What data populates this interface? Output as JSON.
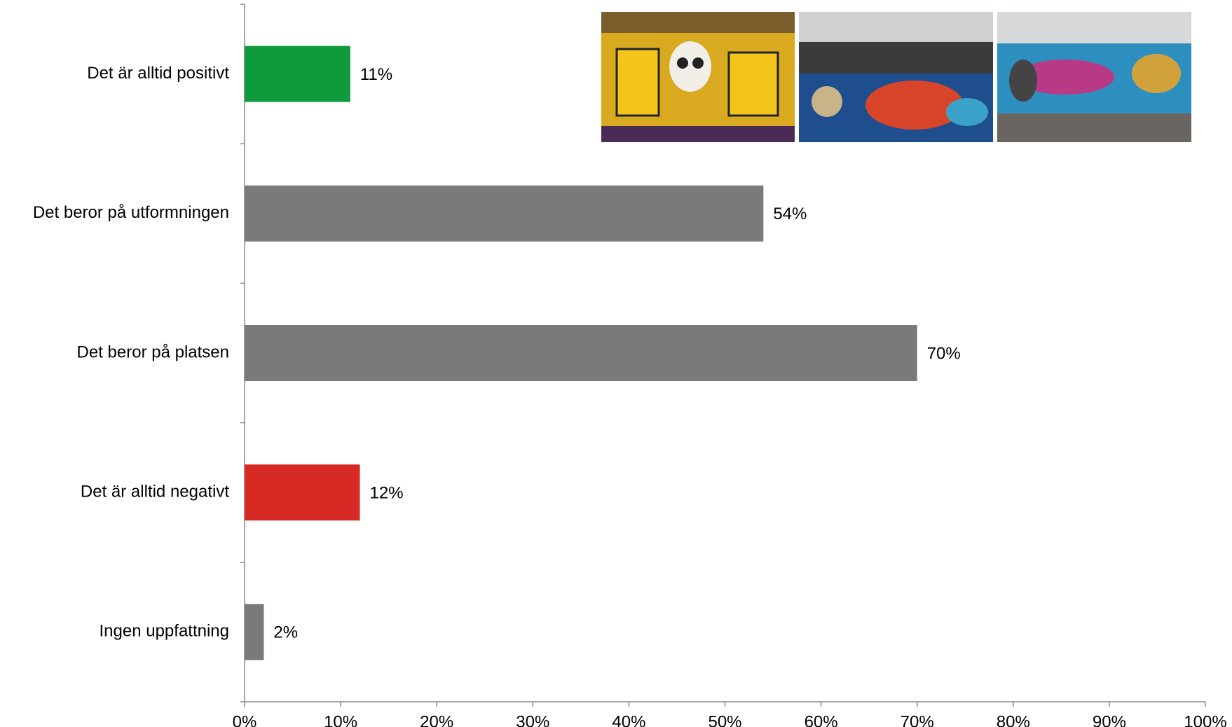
{
  "chart_data": {
    "type": "hbar",
    "categories": [
      "Det är alltid positivt",
      "Det beror på utformningen",
      "Det beror på platsen",
      "Det är alltid negativt",
      "Ingen uppfattning"
    ],
    "values": [
      11,
      54,
      70,
      12,
      2
    ],
    "value_labels": [
      "11%",
      "54%",
      "70%",
      "12%",
      "2%"
    ],
    "colors": [
      "#0f9a3e",
      "#7a7a7a",
      "#7a7a7a",
      "#d82a24",
      "#7a7a7a"
    ],
    "xlim": [
      0,
      100
    ],
    "xticks": [
      {
        "value": 0,
        "label": "0%"
      },
      {
        "value": 10,
        "label": "10%"
      },
      {
        "value": 20,
        "label": "20%"
      },
      {
        "value": 30,
        "label": "30%"
      },
      {
        "value": 40,
        "label": "40%"
      },
      {
        "value": 50,
        "label": "50%"
      },
      {
        "value": 60,
        "label": "60%"
      },
      {
        "value": 70,
        "label": "70%"
      },
      {
        "value": 80,
        "label": "80%"
      },
      {
        "value": 90,
        "label": "90%"
      },
      {
        "value": 100,
        "label": "100%"
      }
    ],
    "grid": false
  }
}
